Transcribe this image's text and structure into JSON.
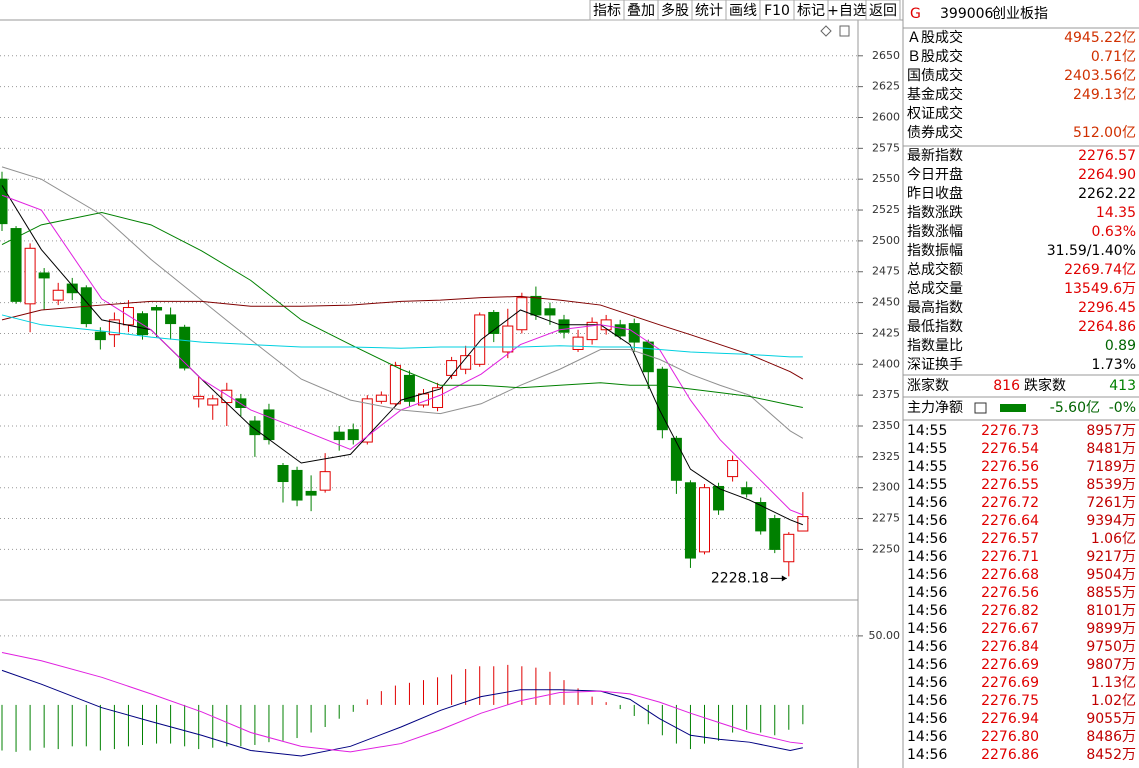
{
  "toolbar": [
    "指标",
    "叠加",
    "多股",
    "统计",
    "画线",
    "F10",
    "标记",
    "+自选",
    "返回"
  ],
  "header": {
    "market": "G",
    "code": "399006",
    "name": "创业板指"
  },
  "turnover": [
    {
      "label": "Ａ股成交",
      "value": "4945.22亿"
    },
    {
      "label": "Ｂ股成交",
      "value": "0.71亿"
    },
    {
      "label": "国债成交",
      "value": "2403.56亿"
    },
    {
      "label": "基金成交",
      "value": "249.13亿"
    },
    {
      "label": "权证成交"
    },
    {
      "label": "债券成交",
      "value": "512.00亿"
    }
  ],
  "quote": [
    {
      "label": "最新指数",
      "value": "2276.57",
      "color": "#e00000"
    },
    {
      "label": "今日开盘",
      "value": "2264.90",
      "color": "#e00000"
    },
    {
      "label": "昨日收盘",
      "value": "2262.22",
      "color": "#000000"
    },
    {
      "label": "指数涨跌",
      "value": "14.35",
      "color": "#e00000"
    },
    {
      "label": "指数涨幅",
      "value": "0.63%",
      "color": "#e00000"
    },
    {
      "label": "指数振幅",
      "value": "31.59/1.40%",
      "color": "#000000"
    },
    {
      "label": "总成交额",
      "value": "2269.74亿",
      "color": "#e00000"
    },
    {
      "label": "总成交量",
      "value": "13549.6万",
      "color": "#e00000"
    },
    {
      "label": "最高指数",
      "value": "2296.45",
      "color": "#e00000"
    },
    {
      "label": "最低指数",
      "value": "2264.86",
      "color": "#e00000"
    },
    {
      "label": "指数量比",
      "value": "0.89",
      "color": "#006400"
    },
    {
      "label": "深证换手",
      "value": "1.73%",
      "color": "#000000"
    }
  ],
  "breadth": {
    "up_label": "涨家数",
    "up": 816,
    "down_label": "跌家数",
    "down": 413
  },
  "flow": {
    "label": "主力净额",
    "value": "-5.60亿",
    "pct": "-0%"
  },
  "ticks": [
    [
      "14:55",
      "2276.73",
      "8957万"
    ],
    [
      "14:55",
      "2276.54",
      "8481万"
    ],
    [
      "14:55",
      "2276.56",
      "7189万"
    ],
    [
      "14:55",
      "2276.55",
      "8539万"
    ],
    [
      "14:56",
      "2276.72",
      "7261万"
    ],
    [
      "14:56",
      "2276.64",
      "9394万"
    ],
    [
      "14:56",
      "2276.57",
      "1.06亿"
    ],
    [
      "14:56",
      "2276.71",
      "9217万"
    ],
    [
      "14:56",
      "2276.68",
      "9504万"
    ],
    [
      "14:56",
      "2276.56",
      "8855万"
    ],
    [
      "14:56",
      "2276.82",
      "8101万"
    ],
    [
      "14:56",
      "2276.67",
      "9899万"
    ],
    [
      "14:56",
      "2276.84",
      "9750万"
    ],
    [
      "14:56",
      "2276.69",
      "9807万"
    ],
    [
      "14:56",
      "2276.69",
      "1.13亿"
    ],
    [
      "14:56",
      "2276.75",
      "1.02亿"
    ],
    [
      "14:56",
      "2276.94",
      "9055万"
    ],
    [
      "14:56",
      "2276.80",
      "8486万"
    ],
    [
      "14:56",
      "2276.86",
      "8452万"
    ]
  ],
  "chart_data": [
    {
      "type": "candlestick",
      "up_color": "#e00000",
      "down_color": "#008000",
      "grid": true,
      "ylim": [
        2209,
        2679
      ],
      "yticks": [
        2250,
        2275,
        2300,
        2325,
        2350,
        2375,
        2400,
        2425,
        2450,
        2475,
        2500,
        2525,
        2550,
        2575,
        2600,
        2625,
        2650
      ],
      "open": [
        2550,
        2510,
        2449,
        2474,
        2452,
        2465,
        2462,
        2426,
        2424,
        2432,
        2441,
        2446,
        2440,
        2430,
        2372,
        2367,
        2369,
        2372,
        2354,
        2363,
        2318,
        2314,
        2297,
        2298,
        2345,
        2347,
        2337,
        2370,
        2368,
        2391,
        2367,
        2365,
        2391,
        2396,
        2400,
        2442,
        2410,
        2428,
        2455,
        2445,
        2436,
        2412,
        2420,
        2428,
        2432,
        2433,
        2418,
        2396,
        2340,
        2304,
        2248,
        2301,
        2309,
        2300,
        2288,
        2275,
        2240,
        2264.9
      ],
      "close": [
        2514,
        2451,
        2494,
        2470,
        2460,
        2458,
        2433,
        2420,
        2436,
        2446,
        2424,
        2444,
        2433,
        2397,
        2374,
        2372,
        2379,
        2365,
        2343,
        2339,
        2305,
        2290,
        2294,
        2313,
        2339,
        2339,
        2372,
        2375,
        2399,
        2370,
        2376,
        2381,
        2403,
        2407,
        2440,
        2425,
        2431,
        2454,
        2440,
        2440,
        2426,
        2422,
        2434,
        2436,
        2423,
        2418,
        2394,
        2347,
        2306,
        2243,
        2300,
        2282,
        2322,
        2295,
        2265,
        2250,
        2262.22,
        2276.57
      ],
      "high": [
        2556,
        2512,
        2498,
        2478,
        2466,
        2470,
        2464,
        2430,
        2442,
        2452,
        2443,
        2448,
        2446,
        2432,
        2390,
        2375,
        2385,
        2376,
        2358,
        2368,
        2320,
        2317,
        2310,
        2328,
        2350,
        2352,
        2375,
        2378,
        2402,
        2395,
        2380,
        2385,
        2406,
        2415,
        2442,
        2444,
        2445,
        2458,
        2463,
        2450,
        2440,
        2428,
        2438,
        2440,
        2436,
        2437,
        2420,
        2398,
        2342,
        2306,
        2303,
        2304,
        2326,
        2305,
        2292,
        2278,
        2264,
        2296.45
      ],
      "low": [
        2508,
        2449,
        2426,
        2444,
        2448,
        2452,
        2430,
        2412,
        2414,
        2426,
        2420,
        2422,
        2420,
        2395,
        2365,
        2355,
        2350,
        2358,
        2325,
        2335,
        2288,
        2285,
        2281,
        2296,
        2330,
        2335,
        2335,
        2368,
        2366,
        2366,
        2365,
        2362,
        2388,
        2392,
        2398,
        2418,
        2405,
        2425,
        2436,
        2432,
        2421,
        2410,
        2416,
        2424,
        2420,
        2410,
        2380,
        2340,
        2295,
        2235,
        2246,
        2278,
        2305,
        2292,
        2262,
        2247,
        2228.18,
        2264.86
      ],
      "series_x": [
        0,
        2.8,
        7.1,
        10.6,
        14.2,
        17.7,
        21.3,
        24.8,
        28.4,
        31.2,
        34.1,
        36.9,
        39.7,
        42.6,
        44.7,
        46.8,
        49,
        51.1,
        53.2,
        56.1,
        57
      ],
      "series": [
        {
          "color": "#000000",
          "values": [
            2545,
            2493,
            2436,
            2428,
            2388,
            2350,
            2320,
            2327,
            2371,
            2380,
            2420,
            2444,
            2432,
            2432,
            2416,
            2363,
            2315,
            2299,
            2290,
            2274,
            2270
          ]
        },
        {
          "color": "#e020e0",
          "values": [
            2537,
            2525,
            2453,
            2428,
            2388,
            2363,
            2347,
            2331,
            2363,
            2375,
            2392,
            2416,
            2428,
            2432,
            2428,
            2412,
            2371,
            2339,
            2315,
            2282,
            2278
          ]
        },
        {
          "color": "#909090",
          "values": [
            2560,
            2550,
            2521,
            2485,
            2452,
            2420,
            2388,
            2371,
            2363,
            2360,
            2368,
            2383,
            2396,
            2412,
            2412,
            2404,
            2392,
            2383,
            2375,
            2346,
            2340
          ]
        },
        {
          "color": "#008000",
          "values": [
            2497,
            2513,
            2523,
            2513,
            2492,
            2468,
            2436,
            2416,
            2396,
            2383,
            2383,
            2381,
            2383,
            2385,
            2383,
            2383,
            2380,
            2377,
            2374,
            2367,
            2365
          ]
        },
        {
          "color": "#800000",
          "values": [
            2436,
            2444,
            2448,
            2451,
            2451,
            2447,
            2447,
            2448,
            2451,
            2452,
            2454,
            2455,
            2452,
            2448,
            2440,
            2432,
            2424,
            2416,
            2408,
            2394,
            2388
          ]
        },
        {
          "color": "#00d0e0",
          "values": [
            2440,
            2432,
            2427,
            2422,
            2418,
            2416,
            2414,
            2414,
            2413,
            2414,
            2414,
            2414,
            2415,
            2414,
            2414,
            2412,
            2410,
            2409,
            2408,
            2406,
            2406
          ]
        }
      ]
    },
    {
      "type": "macd",
      "up_color": "#e00000",
      "down_color": "#008000",
      "grid": true,
      "ylim": [
        -45.7,
        76
      ],
      "yticks": [
        {
          "value": 50,
          "label": "50.00"
        }
      ],
      "values": [
        -33,
        -34,
        -33,
        -31,
        -32,
        -30,
        -30,
        -33,
        -32,
        -30,
        -29,
        -28,
        -28,
        -30,
        -32,
        -31,
        -30,
        -30,
        -29,
        -27,
        -26,
        -24,
        -20,
        -16,
        -10,
        -5,
        4,
        10,
        14,
        16,
        18,
        20,
        22,
        26,
        28,
        28,
        29,
        28,
        27,
        24,
        18,
        12,
        6,
        2,
        -3,
        -8,
        -14,
        -22,
        -28,
        -32,
        -28,
        -26,
        -20,
        -18,
        -20,
        -22,
        -18,
        -14
      ],
      "series_x": [
        0,
        2.8,
        7.1,
        10.6,
        14.2,
        17.7,
        21.3,
        24.8,
        28.4,
        31.2,
        34.1,
        36.9,
        39.7,
        42.6,
        44.7,
        46.8,
        49,
        51.1,
        53.2,
        56.1,
        57
      ],
      "series": [
        {
          "color": "#000080",
          "values": [
            25,
            15,
            -2,
            -12,
            -22,
            -33,
            -37,
            -30,
            -16,
            -4,
            6,
            11,
            11,
            10,
            4,
            -10,
            -22,
            -25,
            -27,
            -33,
            -31
          ]
        },
        {
          "color": "#e020e0",
          "values": [
            38,
            32,
            20,
            8,
            -5,
            -20,
            -30,
            -34,
            -28,
            -18,
            -6,
            3,
            9,
            10,
            8,
            2,
            -6,
            -13,
            -20,
            -27,
            -28
          ]
        }
      ]
    }
  ]
}
